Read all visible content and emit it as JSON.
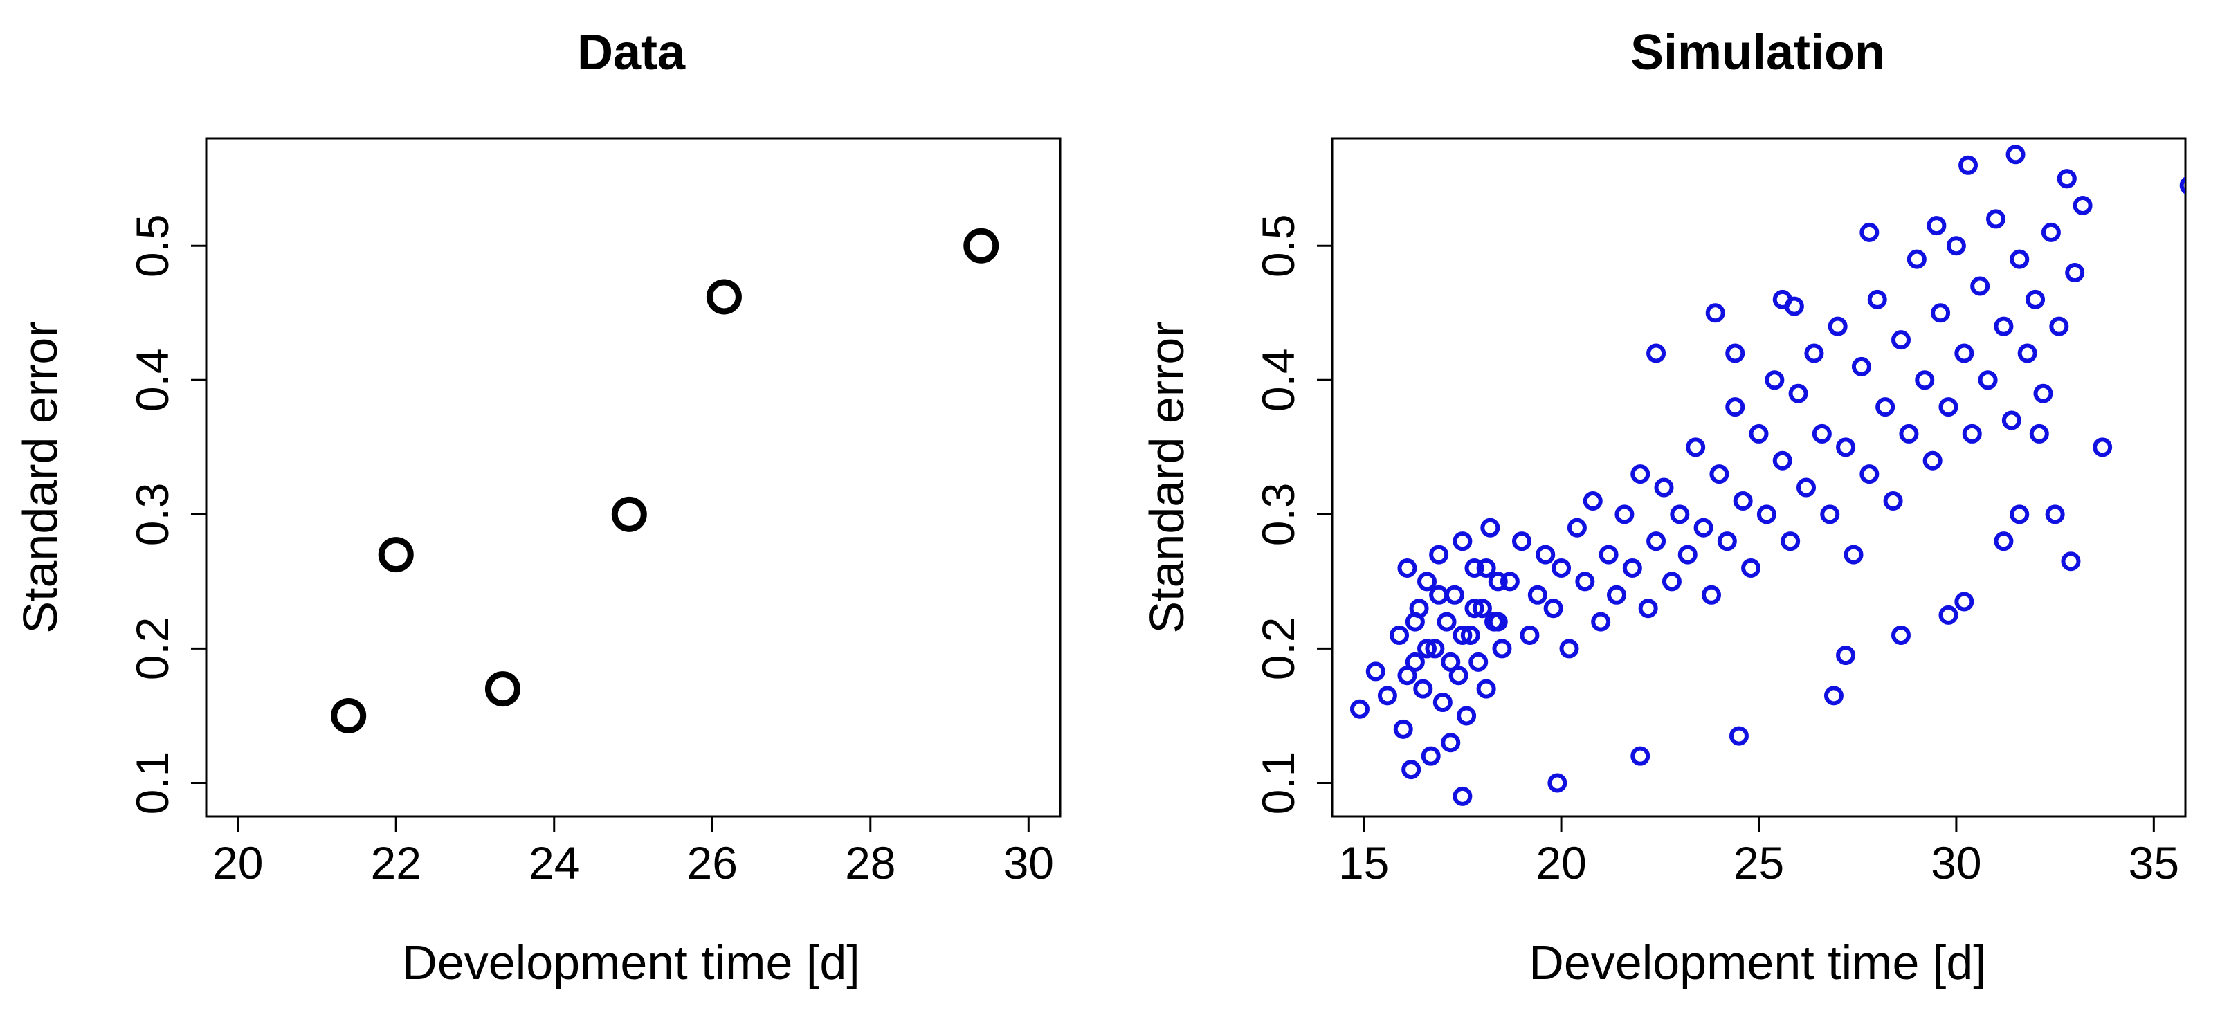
{
  "chart_data": [
    {
      "type": "scatter",
      "title": "Data",
      "xlabel": "Development time [d]",
      "ylabel": "Standard error",
      "xlim": [
        19.6,
        30.4
      ],
      "ylim": [
        0.075,
        0.58
      ],
      "xticks": [
        20,
        22,
        24,
        26,
        28,
        30
      ],
      "yticks": [
        0.1,
        0.2,
        0.3,
        0.4,
        0.5
      ],
      "grid": false,
      "marker_color": "#000000",
      "series": [
        {
          "name": "Data",
          "x": [
            21.4,
            22.0,
            23.35,
            24.95,
            26.15,
            29.4
          ],
          "y": [
            0.15,
            0.27,
            0.17,
            0.3,
            0.462,
            0.5
          ]
        }
      ]
    },
    {
      "type": "scatter",
      "title": "Simulation",
      "xlabel": "Development time [d]",
      "ylabel": "Standard error",
      "xlim": [
        14.2,
        35.8
      ],
      "ylim": [
        0.075,
        0.58
      ],
      "xticks": [
        15,
        20,
        25,
        30,
        35
      ],
      "yticks": [
        0.1,
        0.2,
        0.3,
        0.4,
        0.5
      ],
      "grid": false,
      "marker_color": "#1010E0",
      "series": [
        {
          "name": "Simulation",
          "x": [
            14.9,
            15.3,
            15.6,
            15.9,
            16.0,
            16.1,
            16.2,
            16.3,
            16.4,
            16.5,
            16.6,
            16.7,
            16.8,
            16.9,
            17.0,
            17.1,
            17.2,
            17.3,
            17.4,
            17.5,
            17.6,
            17.7,
            17.8,
            17.9,
            18.0,
            18.1,
            18.2,
            18.3,
            18.4,
            18.5,
            16.1,
            16.3,
            16.6,
            16.9,
            17.2,
            17.5,
            17.8,
            18.1,
            18.4,
            18.7,
            19.0,
            19.2,
            19.4,
            19.6,
            19.8,
            20.0,
            20.2,
            20.4,
            20.6,
            20.8,
            21.0,
            21.2,
            21.4,
            21.6,
            21.8,
            22.0,
            22.2,
            22.4,
            22.6,
            22.8,
            23.0,
            23.2,
            23.4,
            23.6,
            23.8,
            24.0,
            24.2,
            24.4,
            24.6,
            24.8,
            25.0,
            25.2,
            25.4,
            25.6,
            25.8,
            26.0,
            26.2,
            26.4,
            26.6,
            26.8,
            27.0,
            27.2,
            27.4,
            27.6,
            27.8,
            28.0,
            28.2,
            28.4,
            28.6,
            28.8,
            29.0,
            29.2,
            29.4,
            29.6,
            29.8,
            30.0,
            30.2,
            30.4,
            30.6,
            30.8,
            31.0,
            31.2,
            31.4,
            31.6,
            31.8,
            32.0,
            32.2,
            32.4,
            32.6,
            32.8,
            33.0,
            33.2,
            33.7,
            35.9,
            23.9,
            24.4,
            22.4,
            25.6,
            25.9,
            27.8,
            29.5,
            30.3,
            31.5,
            32.8,
            19.9,
            17.5,
            22.0,
            24.5,
            26.9,
            27.2,
            28.6,
            29.8,
            30.2,
            31.2,
            31.6,
            32.1,
            32.5,
            32.9
          ],
          "y": [
            0.155,
            0.183,
            0.165,
            0.21,
            0.14,
            0.26,
            0.11,
            0.19,
            0.23,
            0.17,
            0.25,
            0.12,
            0.2,
            0.27,
            0.16,
            0.22,
            0.13,
            0.24,
            0.18,
            0.28,
            0.15,
            0.21,
            0.26,
            0.19,
            0.23,
            0.17,
            0.29,
            0.22,
            0.25,
            0.2,
            0.18,
            0.22,
            0.2,
            0.24,
            0.19,
            0.21,
            0.23,
            0.26,
            0.22,
            0.25,
            0.28,
            0.21,
            0.24,
            0.27,
            0.23,
            0.26,
            0.2,
            0.29,
            0.25,
            0.31,
            0.22,
            0.27,
            0.24,
            0.3,
            0.26,
            0.33,
            0.23,
            0.28,
            0.32,
            0.25,
            0.3,
            0.27,
            0.35,
            0.29,
            0.24,
            0.33,
            0.28,
            0.38,
            0.31,
            0.26,
            0.36,
            0.3,
            0.4,
            0.34,
            0.28,
            0.39,
            0.32,
            0.42,
            0.36,
            0.3,
            0.44,
            0.35,
            0.27,
            0.41,
            0.33,
            0.46,
            0.38,
            0.31,
            0.43,
            0.36,
            0.49,
            0.4,
            0.34,
            0.45,
            0.38,
            0.5,
            0.42,
            0.36,
            0.47,
            0.4,
            0.52,
            0.44,
            0.37,
            0.49,
            0.42,
            0.46,
            0.39,
            0.51,
            0.44,
            0.55,
            0.48,
            0.53,
            0.35,
            0.545,
            0.45,
            0.42,
            0.42,
            0.46,
            0.455,
            0.51,
            0.515,
            0.56,
            0.568,
            0.55,
            0.1,
            0.09,
            0.12,
            0.135,
            0.165,
            0.195,
            0.21,
            0.225,
            0.235,
            0.28,
            0.3,
            0.36,
            0.3,
            0.265
          ]
        }
      ]
    }
  ]
}
